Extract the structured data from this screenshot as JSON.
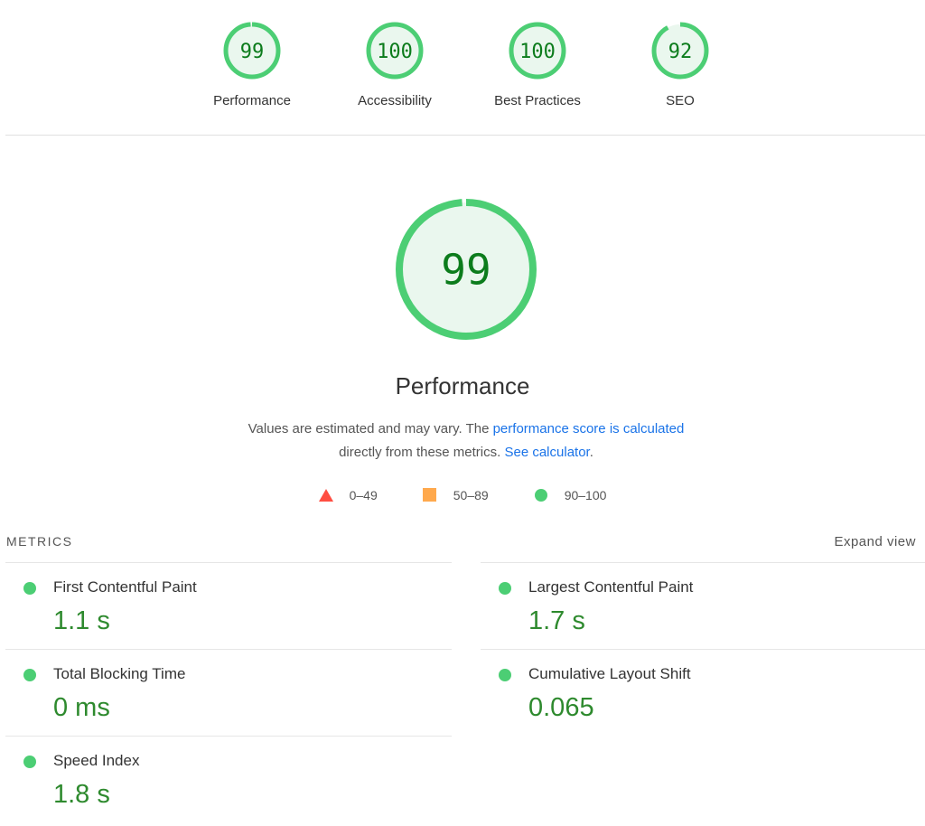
{
  "colors": {
    "pass": "#4cce74",
    "pass_text": "#0c7c1c",
    "average": "#ffa94d",
    "fail": "#ff4e42",
    "link": "#1a73e8"
  },
  "gauges": [
    {
      "label": "Performance",
      "score": 99
    },
    {
      "label": "Accessibility",
      "score": 100
    },
    {
      "label": "Best Practices",
      "score": 100
    },
    {
      "label": "SEO",
      "score": 92
    }
  ],
  "main": {
    "score": 99,
    "title": "Performance",
    "desc": {
      "t1": "Values are estimated and may vary. The ",
      "link1": "performance score is calculated",
      "t2": " directly from these metrics. ",
      "link2": "See calculator",
      "t3": "."
    }
  },
  "legend": [
    {
      "icon": "triangle-icon",
      "range": "0–49"
    },
    {
      "icon": "square-icon",
      "range": "50–89"
    },
    {
      "icon": "circle-icon",
      "range": "90–100"
    }
  ],
  "metrics": {
    "heading": "METRICS",
    "expand": "Expand view",
    "items": [
      {
        "name": "First Contentful Paint",
        "value": "1.1 s",
        "status": "pass"
      },
      {
        "name": "Largest Contentful Paint",
        "value": "1.7 s",
        "status": "pass"
      },
      {
        "name": "Total Blocking Time",
        "value": "0 ms",
        "status": "pass"
      },
      {
        "name": "Cumulative Layout Shift",
        "value": "0.065",
        "status": "pass"
      },
      {
        "name": "Speed Index",
        "value": "1.8 s",
        "status": "pass"
      }
    ]
  }
}
